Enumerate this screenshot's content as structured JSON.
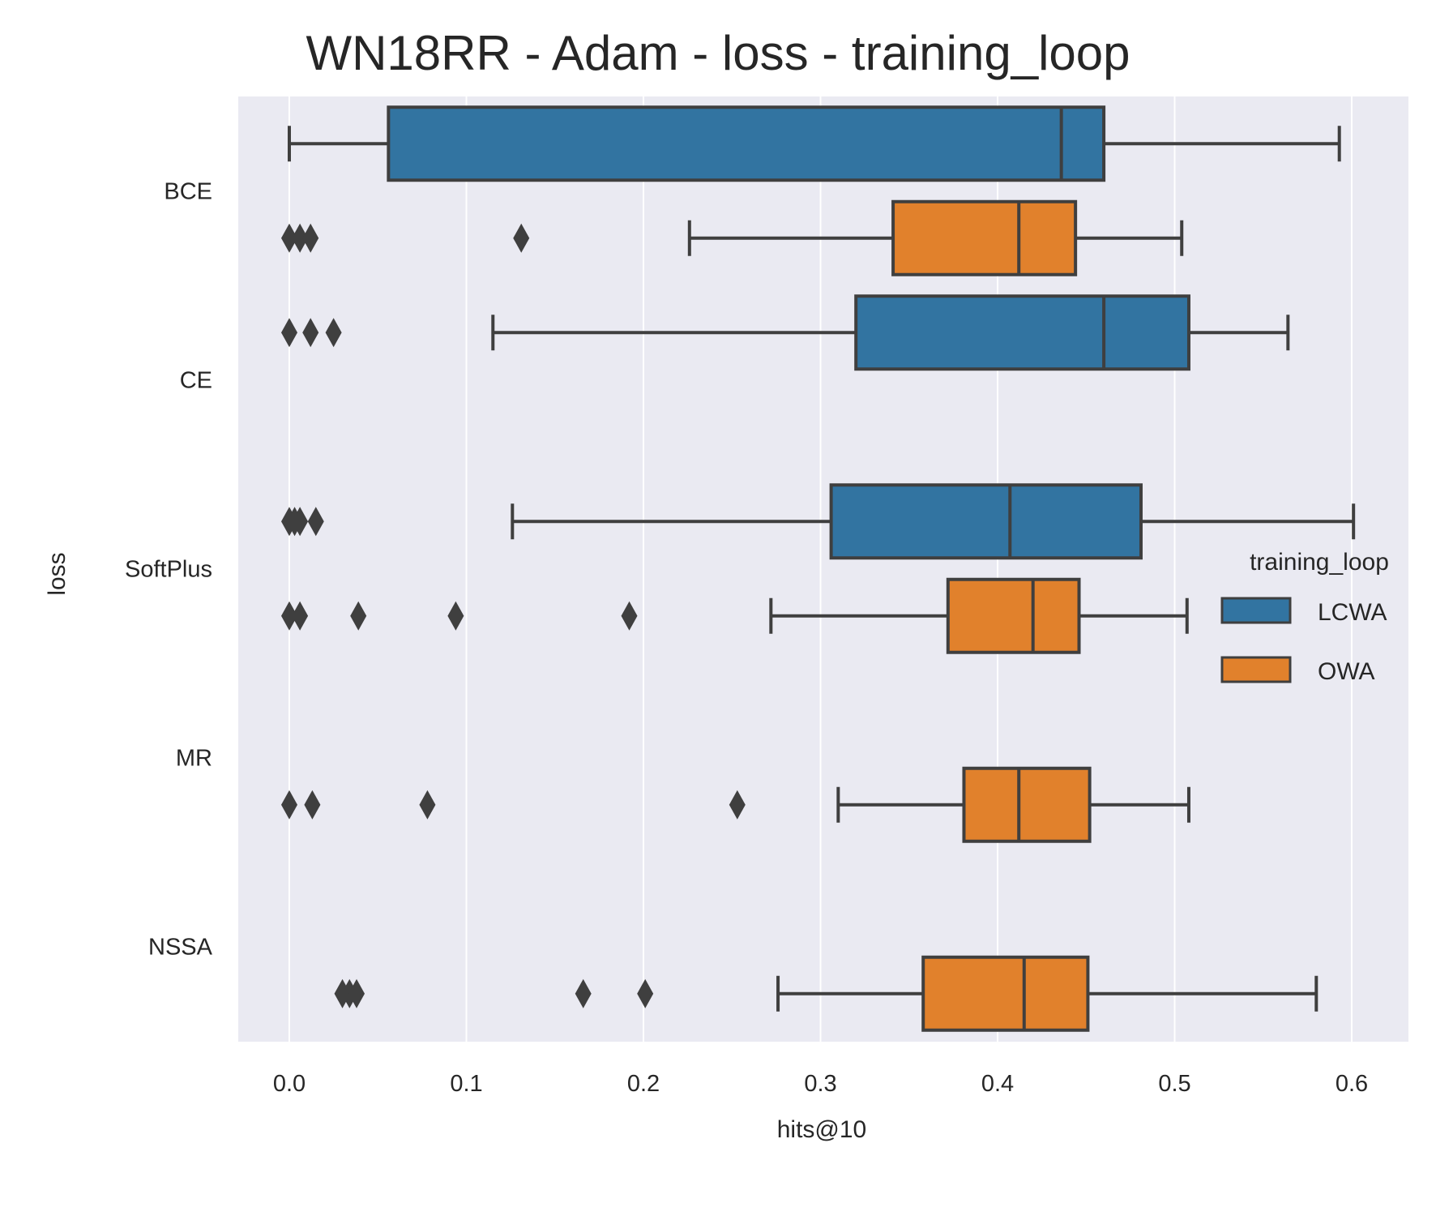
{
  "chart_data": {
    "type": "boxplot",
    "orientation": "horizontal",
    "title": "WN18RR - Adam - loss - training_loop",
    "xlabel": "hits@10",
    "ylabel": "loss",
    "xlim": [
      -0.03,
      0.633
    ],
    "xticks": [
      0.0,
      0.1,
      0.2,
      0.3,
      0.4,
      0.5,
      0.6
    ],
    "xtick_labels": [
      "0.0",
      "0.1",
      "0.2",
      "0.3",
      "0.4",
      "0.5",
      "0.6"
    ],
    "grid": true,
    "categories": [
      "BCE",
      "CE",
      "SoftPlus",
      "MR",
      "NSSA"
    ],
    "legend": {
      "title": "training_loop",
      "placement": "center-right"
    },
    "series": [
      {
        "name": "LCWA",
        "color": "#3274a1",
        "boxes": [
          {
            "category": "BCE",
            "whisker_low": 0.0,
            "q1": 0.056,
            "median": 0.436,
            "q3": 0.46,
            "whisker_high": 0.593,
            "outliers": []
          },
          {
            "category": "CE",
            "whisker_low": 0.115,
            "q1": 0.32,
            "median": 0.46,
            "q3": 0.508,
            "whisker_high": 0.564,
            "outliers": [
              0.0,
              0.012,
              0.025
            ]
          },
          {
            "category": "SoftPlus",
            "whisker_low": 0.126,
            "q1": 0.306,
            "median": 0.407,
            "q3": 0.481,
            "whisker_high": 0.601,
            "outliers": [
              0.0,
              0.003,
              0.006,
              0.015
            ]
          }
        ]
      },
      {
        "name": "OWA",
        "color": "#e1812c",
        "boxes": [
          {
            "category": "BCE",
            "whisker_low": 0.226,
            "q1": 0.341,
            "median": 0.412,
            "q3": 0.444,
            "whisker_high": 0.504,
            "outliers": [
              0.0,
              0.006,
              0.012,
              0.131
            ]
          },
          {
            "category": "SoftPlus",
            "whisker_low": 0.272,
            "q1": 0.372,
            "median": 0.42,
            "q3": 0.446,
            "whisker_high": 0.507,
            "outliers": [
              0.0,
              0.006,
              0.039,
              0.094,
              0.192
            ]
          },
          {
            "category": "MR",
            "whisker_low": 0.31,
            "q1": 0.381,
            "median": 0.412,
            "q3": 0.452,
            "whisker_high": 0.508,
            "outliers": [
              0.0,
              0.013,
              0.078,
              0.253
            ]
          },
          {
            "category": "NSSA",
            "whisker_low": 0.276,
            "q1": 0.358,
            "median": 0.415,
            "q3": 0.451,
            "whisker_high": 0.58,
            "outliers": [
              0.03,
              0.034,
              0.038,
              0.166,
              0.201
            ]
          }
        ]
      }
    ]
  }
}
